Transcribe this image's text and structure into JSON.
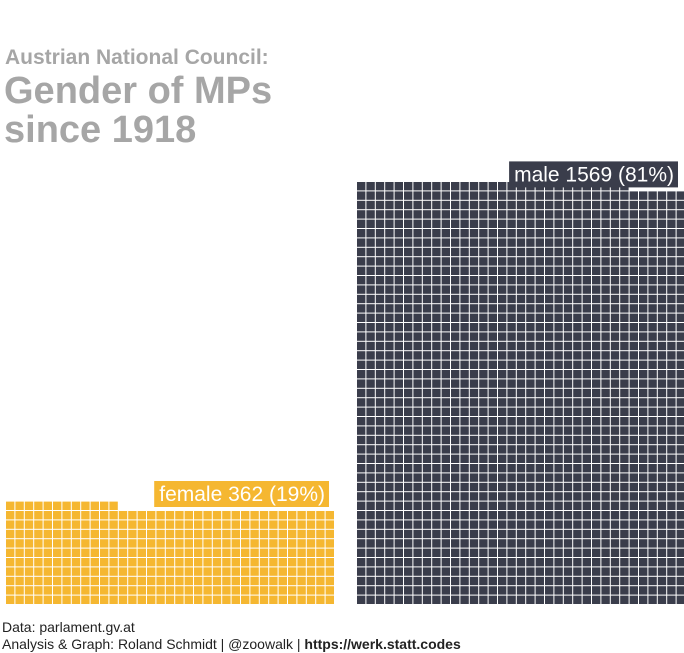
{
  "title": {
    "kicker": "Austrian National Council:",
    "main": "Gender of MPs since 1918"
  },
  "chart_data": {
    "type": "waffle",
    "title": "Austrian National Council: Gender of MPs since 1918",
    "unit": "one square = one MP",
    "series": [
      {
        "name": "female",
        "value": 362,
        "percent": 19,
        "label": "female 362 (19%)",
        "color": "#f5b731"
      },
      {
        "name": "male",
        "value": 1569,
        "percent": 81,
        "label": "male 1569 (81%)",
        "color": "#3a3d4b"
      }
    ]
  },
  "caption": {
    "source": "Data: parlament.gv.at",
    "credit": "Analysis & Graph: Roland Schmidt | @zoowalk |",
    "url": "https://werk.statt.codes"
  }
}
